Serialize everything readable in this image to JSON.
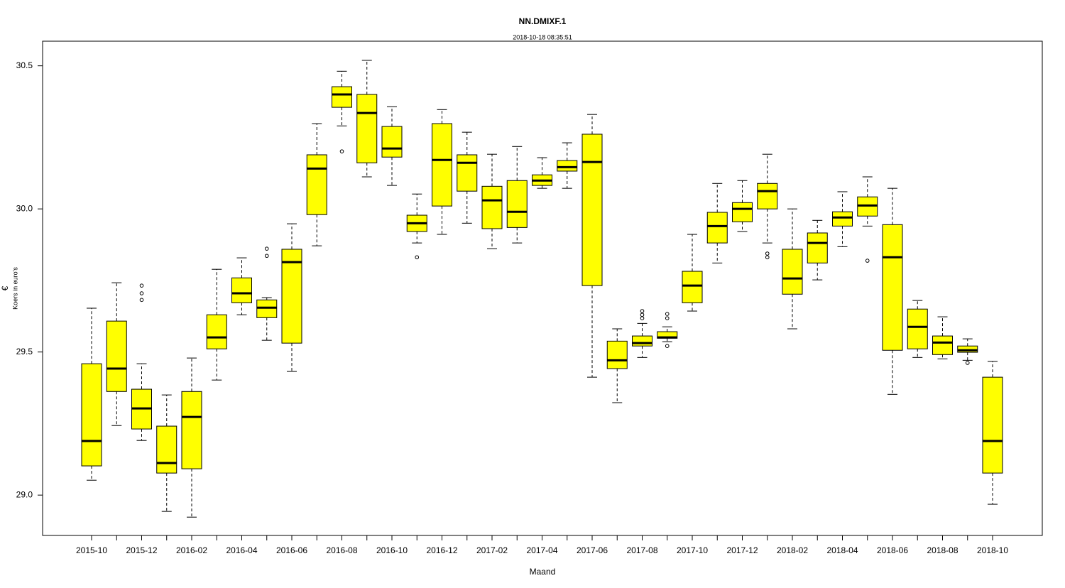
{
  "chart_data": {
    "type": "box",
    "title": "NN.DMIXF.1",
    "subtitle": "2018-10-18 08:35:51",
    "xlabel": "Maand",
    "ylabel_symbol": "€",
    "ylabel": "Koers in euro's",
    "color": "#ffff00",
    "categories": [
      "2015-10",
      null,
      "2015-12",
      null,
      "2016-02",
      null,
      "2016-04",
      null,
      "2016-06",
      null,
      "2016-08",
      null,
      "2016-10",
      null,
      "2016-12",
      null,
      "2017-02",
      null,
      "2017-04",
      null,
      "2017-06",
      null,
      "2017-08",
      null,
      "2017-10",
      null,
      "2017-12",
      null,
      "2018-02",
      null,
      "2018-04",
      null,
      "2018-06",
      null,
      "2018-08",
      null,
      "2018-10"
    ],
    "whisker_low": [
      29.052,
      29.243,
      29.191,
      28.943,
      28.923,
      29.402,
      29.63,
      29.541,
      29.432,
      29.871,
      30.29,
      30.112,
      30.082,
      29.881,
      29.911,
      29.95,
      29.861,
      29.881,
      30.072,
      30.072,
      29.412,
      29.323,
      29.481,
      29.536,
      29.643,
      29.811,
      29.921,
      29.881,
      29.581,
      29.752,
      29.868,
      29.94,
      29.352,
      29.481,
      29.476,
      29.471,
      28.968
    ],
    "q1": [
      29.102,
      29.362,
      29.231,
      29.077,
      29.092,
      29.511,
      29.672,
      29.62,
      29.531,
      29.98,
      30.355,
      30.161,
      30.181,
      29.921,
      30.01,
      30.062,
      29.931,
      29.935,
      30.082,
      30.132,
      29.732,
      29.442,
      29.521,
      29.548,
      29.672,
      29.881,
      29.955,
      30.0,
      29.702,
      29.811,
      29.94,
      29.975,
      29.506,
      29.511,
      29.491,
      29.499,
      29.077
    ],
    "median": [
      29.189,
      29.442,
      29.303,
      29.112,
      29.273,
      29.551,
      29.705,
      29.655,
      29.814,
      30.141,
      30.4,
      30.335,
      30.211,
      29.95,
      30.171,
      30.161,
      30.03,
      29.99,
      30.099,
      30.146,
      30.164,
      29.471,
      29.531,
      29.551,
      29.732,
      29.94,
      30.0,
      30.062,
      29.757,
      29.881,
      29.97,
      30.012,
      29.831,
      29.588,
      29.533,
      29.506,
      29.189
    ],
    "q3": [
      29.459,
      29.608,
      29.37,
      29.241,
      29.362,
      29.63,
      29.759,
      29.682,
      29.859,
      30.189,
      30.427,
      30.4,
      30.288,
      29.978,
      30.298,
      30.189,
      30.079,
      30.099,
      30.119,
      30.169,
      30.261,
      29.538,
      29.556,
      29.571,
      29.782,
      29.988,
      30.022,
      30.089,
      29.859,
      29.916,
      29.99,
      30.042,
      29.945,
      29.65,
      29.556,
      29.521,
      29.412
    ],
    "whisker_high": [
      29.653,
      29.742,
      29.459,
      29.35,
      29.479,
      29.789,
      29.829,
      29.69,
      29.948,
      30.298,
      30.481,
      30.519,
      30.357,
      30.052,
      30.347,
      30.268,
      30.191,
      30.218,
      30.179,
      30.231,
      30.33,
      29.581,
      29.6,
      29.588,
      29.911,
      30.089,
      30.099,
      30.191,
      30.0,
      29.96,
      30.06,
      30.112,
      30.072,
      29.68,
      29.623,
      29.546,
      29.467
    ],
    "outliers": [
      [],
      [],
      [
        29.732,
        29.705,
        29.682
      ],
      [],
      [],
      [],
      [],
      [
        29.861,
        29.836
      ],
      [],
      [],
      [
        30.201
      ],
      [],
      [],
      [
        29.831
      ],
      [],
      [],
      [],
      [],
      [],
      [],
      [],
      [],
      [
        29.643,
        29.63,
        29.618
      ],
      [
        29.633,
        29.618,
        29.521
      ],
      [],
      [],
      [],
      [
        29.844,
        29.831
      ],
      [],
      [],
      [],
      [
        29.819
      ],
      [],
      [],
      [],
      [
        29.462
      ],
      []
    ],
    "ylim": [
      28.859,
      30.586
    ],
    "yticks": [
      {
        "value": 29,
        "label": "29.0"
      },
      29.5,
      {
        "value": 30,
        "label": "30.0"
      },
      30.5
    ]
  }
}
